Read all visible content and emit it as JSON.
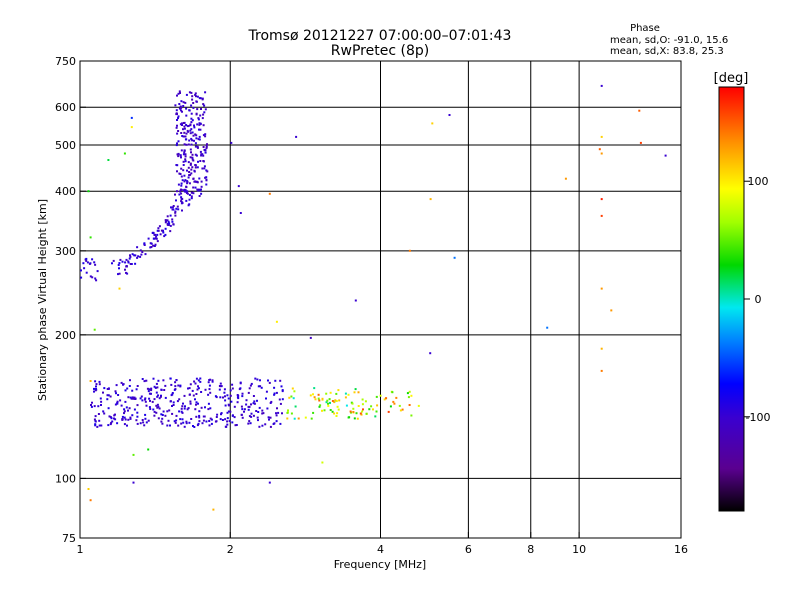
{
  "chart_data": {
    "type": "scatter",
    "title_line1": "Tromsø 20121227 07:00:00–07:01:43",
    "title_line2": "RwPretec (8p)",
    "xlabel": "Frequency [MHz]",
    "ylabel": "Stationary phase Virtual Height [km]",
    "x_scale": "log",
    "y_scale": "log",
    "xlim": [
      1,
      16
    ],
    "ylim": [
      75,
      750
    ],
    "x_ticks": [
      1,
      2,
      4,
      6,
      8,
      10,
      16
    ],
    "x_tick_labels": [
      "1",
      "2",
      "4",
      "6",
      "8",
      "10",
      "16"
    ],
    "x_gridlines": [
      2,
      4,
      6,
      8,
      10
    ],
    "y_ticks": [
      75,
      100,
      200,
      300,
      400,
      500,
      600,
      750
    ],
    "y_tick_labels": [
      "75",
      "100",
      "200",
      "300",
      "400",
      "500",
      "600",
      "750"
    ],
    "y_gridlines": [
      100,
      200,
      300,
      400,
      500,
      600
    ],
    "grid": true,
    "stats": {
      "header": "Phase",
      "line_o": "mean, sd,O: -91.0, 15.6",
      "line_x": "mean, sd,X:  83.8, 25.3"
    },
    "colorbar": {
      "label": "[deg]",
      "range": [
        -180,
        180
      ],
      "ticks": [
        -100,
        0,
        100
      ],
      "tick_labels": [
        "-100",
        "0",
        "100"
      ]
    },
    "colors": {
      "purple": "#7a00b0",
      "blue": "#1a1aff",
      "cyan": "#00d8ff",
      "green": "#00e000",
      "yellow": "#ffe000",
      "orange": "#ff8000",
      "red": "#ff0000"
    },
    "clusters": [
      {
        "name": "F-trace upper",
        "fmin": 1.55,
        "fmax": 1.8,
        "hmin": 390,
        "hmax": 650,
        "n": 260,
        "phase": -105
      },
      {
        "name": "F-trace lower curve",
        "curve": [
          [
            1.18,
            275
          ],
          [
            1.3,
            290
          ],
          [
            1.42,
            318
          ],
          [
            1.52,
            350
          ],
          [
            1.6,
            380
          ],
          [
            1.66,
            400
          ]
        ],
        "n": 120,
        "phase": -100
      },
      {
        "name": "E-layer band",
        "fmin": 1.05,
        "fmax": 2.55,
        "hmin": 128,
        "hmax": 162,
        "n": 420,
        "phase": -100
      },
      {
        "name": "Es mixed",
        "fmin": 2.6,
        "fmax": 3.95,
        "hmin": 133,
        "hmax": 155,
        "n": 60,
        "phase": 60
      },
      {
        "name": "Es spread",
        "fmin": 2.95,
        "fmax": 4.8,
        "hmin": 135,
        "hmax": 152,
        "n": 50,
        "phase": 90
      },
      {
        "name": "low-freq near 1MHz",
        "fmin": 1.0,
        "fmax": 1.1,
        "hmin": 260,
        "hmax": 290,
        "n": 20,
        "phase": -100
      }
    ],
    "scattered_points": [
      [
        1.27,
        570,
        -60
      ],
      [
        1.27,
        545,
        100
      ],
      [
        1.23,
        480,
        40
      ],
      [
        1.14,
        465,
        20
      ],
      [
        1.04,
        400,
        30
      ],
      [
        1.05,
        320,
        40
      ],
      [
        1.2,
        250,
        110
      ],
      [
        1.07,
        205,
        50
      ],
      [
        1.05,
        160,
        120
      ],
      [
        1.23,
        130,
        -100
      ],
      [
        1.28,
        112,
        50
      ],
      [
        1.37,
        115,
        30
      ],
      [
        1.04,
        95,
        110
      ],
      [
        1.05,
        90,
        140
      ],
      [
        1.28,
        98,
        -100
      ],
      [
        1.85,
        86,
        120
      ],
      [
        2.48,
        213,
        100
      ],
      [
        2.9,
        197,
        -110
      ],
      [
        3.06,
        108,
        80
      ],
      [
        3.57,
        236,
        -100
      ],
      [
        2.4,
        98,
        -100
      ],
      [
        2.4,
        395,
        140
      ],
      [
        2.71,
        520,
        -100
      ],
      [
        2.01,
        505,
        -100
      ],
      [
        2.08,
        410,
        -100
      ],
      [
        2.1,
        360,
        -100
      ],
      [
        4.58,
        300,
        140
      ],
      [
        5.03,
        183,
        -100
      ],
      [
        5.04,
        385,
        120
      ],
      [
        5.08,
        555,
        110
      ],
      [
        5.5,
        578,
        -100
      ],
      [
        5.63,
        290,
        -40
      ],
      [
        8.63,
        207,
        -40
      ],
      [
        9.41,
        425,
        130
      ],
      [
        11.1,
        665,
        -100
      ],
      [
        11.1,
        520,
        110
      ],
      [
        11.1,
        480,
        130
      ],
      [
        11.1,
        385,
        170
      ],
      [
        11.1,
        355,
        160
      ],
      [
        11.1,
        250,
        130
      ],
      [
        11.1,
        187,
        120
      ],
      [
        11.1,
        168,
        140
      ],
      [
        11.6,
        225,
        130
      ],
      [
        13.2,
        590,
        150
      ],
      [
        13.3,
        505,
        160
      ],
      [
        14.9,
        475,
        -100
      ],
      [
        11.0,
        490,
        150
      ]
    ]
  }
}
